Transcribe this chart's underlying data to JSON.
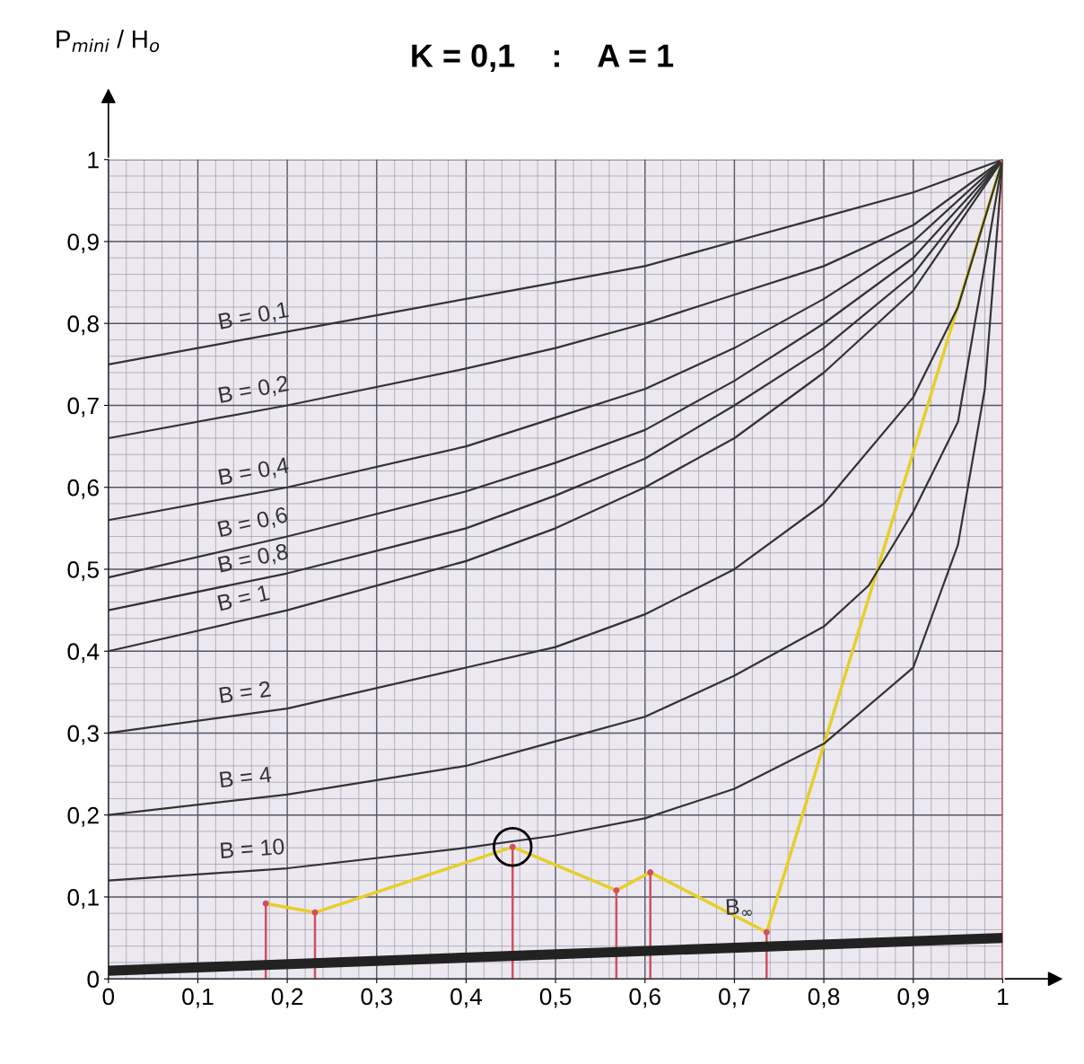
{
  "chart_data": {
    "type": "line",
    "title": "K = 0,1    :    A = 1",
    "annotations": [
      "P$_{mini}$ / H$_{o}$"
    ],
    "xlim": [
      0,
      1
    ],
    "ylim": [
      0,
      1
    ],
    "xticks": [
      0,
      {
        "value": 0.1,
        "label": "0,1"
      },
      {
        "value": 0.2,
        "label": "0,2"
      },
      {
        "value": 0.3,
        "label": "0,3"
      },
      {
        "value": 0.4,
        "label": "0,4"
      },
      {
        "value": 0.5,
        "label": "0,5"
      },
      {
        "value": 0.6,
        "label": "0,6"
      },
      {
        "value": 0.7,
        "label": "0,7"
      },
      {
        "value": 0.8,
        "label": "0,8"
      },
      {
        "value": 0.9,
        "label": "0,9"
      },
      1
    ],
    "yticks": [
      0,
      {
        "value": 0.1,
        "label": "0,1"
      },
      {
        "value": 0.2,
        "label": "0,2"
      },
      {
        "value": 0.3,
        "label": "0,3"
      },
      {
        "value": 0.4,
        "label": "0,4"
      },
      {
        "value": 0.5,
        "label": "0,5"
      },
      {
        "value": 0.6,
        "label": "0,6"
      },
      {
        "value": 0.7,
        "label": "0,7"
      },
      {
        "value": 0.8,
        "label": "0,8"
      },
      {
        "value": 0.9,
        "label": "0,9"
      },
      1
    ],
    "grid": true,
    "marker": "none",
    "line_style": "solid",
    "series": [
      {
        "name": "B = 0,1",
        "color": "#333333",
        "x": [
          0,
          0.1,
          0.2,
          0.3,
          0.4,
          0.5,
          0.6,
          0.7,
          0.8,
          0.9,
          1
        ],
        "values": [
          0.75,
          0.77,
          0.79,
          0.81,
          0.83,
          0.85,
          0.87,
          0.9,
          0.93,
          0.96,
          1
        ]
      },
      {
        "name": "B = 0,2",
        "color": "#333333",
        "x": [
          0,
          0.2,
          0.4,
          0.5,
          0.6,
          0.7,
          0.8,
          0.9,
          1
        ],
        "values": [
          0.66,
          0.7,
          0.745,
          0.77,
          0.8,
          0.835,
          0.87,
          0.92,
          1
        ]
      },
      {
        "name": "B = 0,4",
        "color": "#333333",
        "x": [
          0,
          0.2,
          0.4,
          0.5,
          0.6,
          0.7,
          0.8,
          0.9,
          1
        ],
        "values": [
          0.56,
          0.6,
          0.65,
          0.685,
          0.72,
          0.77,
          0.83,
          0.9,
          1
        ]
      },
      {
        "name": "B = 0,6",
        "color": "#333333",
        "x": [
          0,
          0.2,
          0.4,
          0.5,
          0.6,
          0.7,
          0.8,
          0.9,
          1
        ],
        "values": [
          0.49,
          0.54,
          0.595,
          0.63,
          0.67,
          0.73,
          0.8,
          0.88,
          1
        ]
      },
      {
        "name": "B = 0,8",
        "color": "#333333",
        "x": [
          0,
          0.2,
          0.4,
          0.5,
          0.6,
          0.7,
          0.8,
          0.9,
          1
        ],
        "values": [
          0.45,
          0.495,
          0.55,
          0.59,
          0.635,
          0.7,
          0.77,
          0.86,
          1
        ]
      },
      {
        "name": "B = 1",
        "color": "#333333",
        "x": [
          0,
          0.2,
          0.4,
          0.5,
          0.6,
          0.7,
          0.8,
          0.9,
          1
        ],
        "values": [
          0.4,
          0.45,
          0.51,
          0.55,
          0.6,
          0.66,
          0.74,
          0.84,
          1
        ]
      },
      {
        "name": "B = 2",
        "color": "#333333",
        "x": [
          0,
          0.2,
          0.4,
          0.5,
          0.6,
          0.7,
          0.8,
          0.9,
          0.95,
          1
        ],
        "values": [
          0.3,
          0.33,
          0.38,
          0.405,
          0.445,
          0.5,
          0.58,
          0.71,
          0.82,
          1
        ]
      },
      {
        "name": "B = 4",
        "color": "#333333",
        "x": [
          0,
          0.2,
          0.4,
          0.5,
          0.6,
          0.7,
          0.8,
          0.85,
          0.9,
          0.95,
          1
        ],
        "values": [
          0.2,
          0.225,
          0.26,
          0.29,
          0.32,
          0.37,
          0.43,
          0.48,
          0.57,
          0.68,
          1
        ]
      },
      {
        "name": "B = 10",
        "color": "#333333",
        "x": [
          0,
          0.2,
          0.4,
          0.5,
          0.6,
          0.7,
          0.8,
          0.9,
          0.95,
          0.98,
          1
        ],
        "values": [
          0.12,
          0.135,
          0.16,
          0.175,
          0.196,
          0.232,
          0.287,
          0.38,
          0.53,
          0.72,
          1
        ]
      },
      {
        "name": "B$_{∞}$",
        "color": "#222222",
        "x": [
          0,
          1
        ],
        "values": [
          0.01,
          0.05
        ]
      },
      {
        "color": "#e6cf2a",
        "x": [
          0.176,
          0.231,
          0.452,
          0.568,
          0.606,
          0.736,
          1
        ],
        "values": [
          0.092,
          0.081,
          0.161,
          0.108,
          0.13,
          0.057,
          1
        ]
      },
      {
        "type": "lollipop",
        "color": "#d05060",
        "marker": "circle",
        "x": [
          0.176,
          0.231,
          0.452,
          0.568,
          0.606,
          0.736,
          1
        ],
        "values": [
          0.092,
          0.081,
          0.161,
          0.108,
          0.13,
          0.057,
          1
        ]
      },
      {
        "type": "scatter",
        "color": "#000000",
        "marker": "circle",
        "x": [
          0.452
        ],
        "values": [
          0.161
        ]
      }
    ]
  }
}
